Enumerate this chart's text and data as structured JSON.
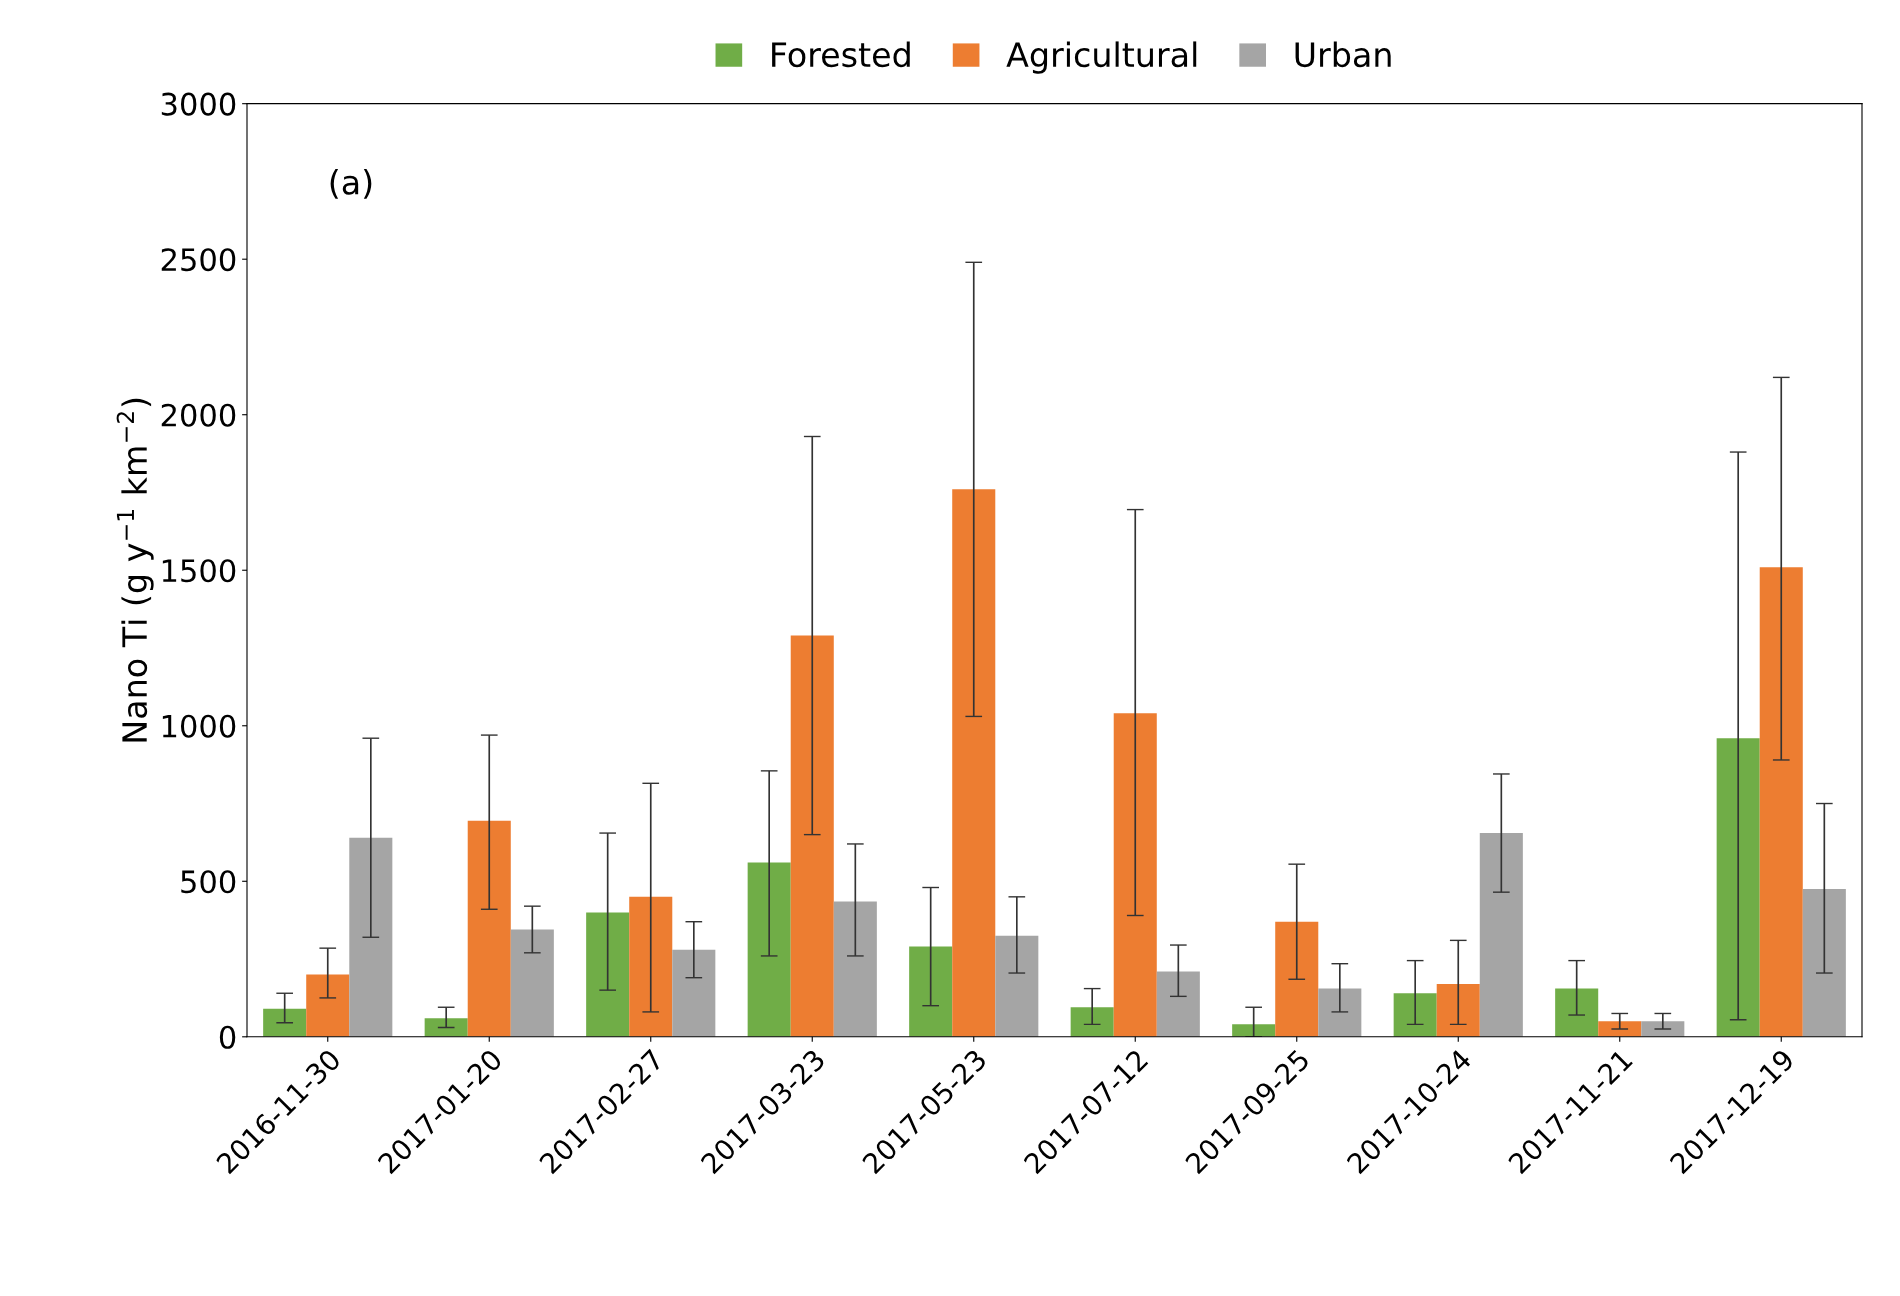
{
  "chart_data": {
    "type": "bar",
    "ylabel": "Nano Ti (g y$^{−1}$ km$^{−2}$)",
    "annotations": [
      "(a)"
    ],
    "categories": [
      "2016-11-30",
      "2017-01-20",
      "2017-02-27",
      "2017-03-23",
      "2017-05-23",
      "2017-07-12",
      "2017-09-25",
      "2017-10-24",
      "2017-11-21",
      "2017-12-19"
    ],
    "series": [
      {
        "name": "Forested",
        "color": "#70ad47",
        "values": [
          90,
          60,
          400,
          560,
          290,
          95,
          40,
          140,
          155,
          960
        ],
        "errors": [
          [
            45,
            140
          ],
          [
            30,
            95
          ],
          [
            150,
            655
          ],
          [
            260,
            855
          ],
          [
            100,
            480
          ],
          [
            40,
            155
          ],
          [
            0,
            95
          ],
          [
            40,
            245
          ],
          [
            70,
            245
          ],
          [
            55,
            1880
          ]
        ]
      },
      {
        "name": "Agricultural",
        "color": "#ed7d31",
        "values": [
          200,
          695,
          450,
          1290,
          1760,
          1040,
          370,
          170,
          50,
          1510
        ],
        "errors": [
          [
            125,
            285
          ],
          [
            410,
            970
          ],
          [
            80,
            815
          ],
          [
            650,
            1930
          ],
          [
            1030,
            2490
          ],
          [
            390,
            1695
          ],
          [
            185,
            555
          ],
          [
            40,
            310
          ],
          [
            25,
            75
          ],
          [
            890,
            2120
          ]
        ]
      },
      {
        "name": "Urban",
        "color": "#a5a5a5",
        "values": [
          640,
          345,
          280,
          435,
          325,
          210,
          155,
          655,
          50,
          475
        ],
        "errors": [
          [
            320,
            960
          ],
          [
            270,
            420
          ],
          [
            190,
            370
          ],
          [
            260,
            620
          ],
          [
            205,
            450
          ],
          [
            130,
            295
          ],
          [
            80,
            235
          ],
          [
            465,
            845
          ],
          [
            25,
            75
          ],
          [
            205,
            750
          ]
        ]
      }
    ],
    "ylim": [
      0,
      3000
    ],
    "yticks": [
      0,
      500,
      1000,
      1500,
      2000,
      2500,
      3000
    ],
    "legend": "top"
  }
}
